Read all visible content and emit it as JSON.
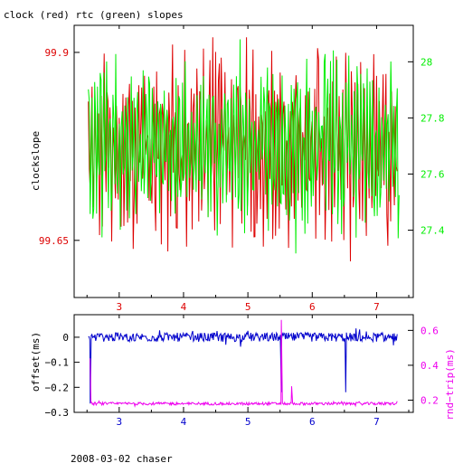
{
  "title": "clock (red) rtc (green) slopes",
  "footer": "2008-03-02 chaser",
  "colors": {
    "clock": "#dd0000",
    "rtc": "#00ee00",
    "offset": "#0000cc",
    "rndtrip": "#ee00ee",
    "axis": "#000000"
  },
  "chart_data": [
    {
      "type": "line",
      "xlim": [
        2.3,
        7.57
      ],
      "x_ticks": [
        3,
        4,
        5,
        6,
        7
      ],
      "x_tick_labels": [
        "3",
        "4",
        "5",
        "6",
        "7"
      ],
      "ylabel": "clockslope",
      "ylim": [
        99.574,
        99.936
      ],
      "y_ticks": [
        99.65,
        99.9
      ],
      "y_tick_labels": [
        "99.65",
        "99.9"
      ],
      "y2lim": [
        27.16,
        28.13
      ],
      "y2_ticks": [
        27.4,
        27.6,
        27.8,
        28.0
      ],
      "y2_tick_labels": [
        "27.4",
        "27.6",
        "27.8",
        "28"
      ],
      "series": [
        {
          "key": "clock",
          "axis": "left",
          "xrange": [
            2.52,
            7.32
          ],
          "samples": 330,
          "center": 99.77,
          "amplitude": 0.11,
          "noise": 0.05,
          "upper_bound": 99.92,
          "lower_bound": 99.6
        },
        {
          "key": "rtc",
          "axis": "right",
          "xrange": [
            2.52,
            7.35
          ],
          "samples": 340,
          "center": 27.7,
          "amplitude": 0.28,
          "noise": 0.08,
          "upper_bound": 28.08,
          "lower_bound": 27.3
        }
      ]
    },
    {
      "type": "line",
      "xlim": [
        2.3,
        7.57
      ],
      "x_ticks": [
        3,
        4,
        5,
        6,
        7
      ],
      "x_tick_labels": [
        "3",
        "4",
        "5",
        "6",
        "7"
      ],
      "ylabel": "offset(ms)",
      "ylim": [
        -0.3,
        0.09
      ],
      "y_ticks": [
        0,
        -0.1,
        -0.2,
        -0.3
      ],
      "y_tick_labels": [
        "0",
        "−0.1",
        "−0.2",
        "−0.3"
      ],
      "y2label": "rnd−trip(ms)",
      "y2lim": [
        0.13,
        0.69
      ],
      "y2_ticks": [
        0.2,
        0.4,
        0.6
      ],
      "y2_tick_labels": [
        "0.2",
        "0.4",
        "0.6"
      ],
      "series": [
        {
          "key": "offset",
          "axis": "left",
          "xrange": [
            2.52,
            7.32
          ],
          "samples": 420,
          "center": 0.0,
          "noise": 0.018,
          "spikes": [
            {
              "x": 2.55,
              "y": -0.265
            },
            {
              "x": 5.52,
              "y": -0.22
            },
            {
              "x": 6.52,
              "y": -0.22
            }
          ]
        },
        {
          "key": "rndtrip",
          "axis": "right",
          "xrange": [
            2.55,
            7.32
          ],
          "samples": 420,
          "center": 0.18,
          "noise": 0.008,
          "spikes": [
            {
              "x": 2.55,
              "y": 0.44
            },
            {
              "x": 5.52,
              "y": 0.66
            },
            {
              "x": 5.68,
              "y": 0.28
            }
          ]
        }
      ]
    }
  ]
}
